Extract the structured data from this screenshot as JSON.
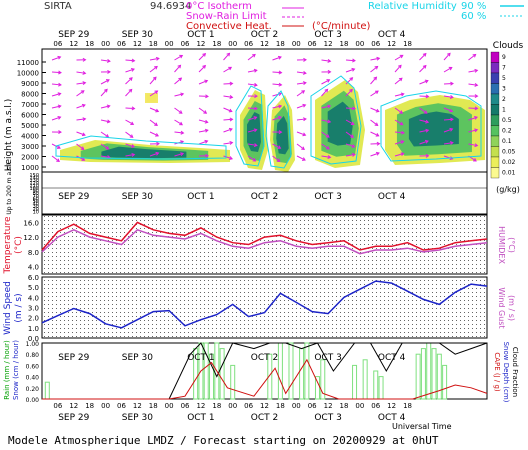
{
  "header": {
    "station": "SIRTA",
    "value": "94.6934",
    "isotherm": "0°C Isotherm",
    "snow_rain": "Snow-Rain Limit",
    "convective": "Convective Heat.",
    "convective_unit": "(°C/minute)",
    "rh_label": "Relative Humidity",
    "rh_90": "90 %",
    "rh_60": "60 %"
  },
  "dates": [
    "SEP 29",
    "SEP 30",
    "OCT  1",
    "OCT  2",
    "OCT  3",
    "OCT  4"
  ],
  "hours": [
    "06",
    "12",
    "18",
    "00",
    "06",
    "12",
    "18",
    "00",
    "06",
    "12",
    "18",
    "00",
    "06",
    "12",
    "18",
    "00",
    "06",
    "12",
    "18",
    "00",
    "06",
    "12",
    "18"
  ],
  "panels": {
    "clouds": {
      "ylabel": "Height  (m a.s.l.)",
      "yticks": [
        "11000",
        "10000",
        "9000",
        "8000",
        "7000",
        "6000",
        "5000",
        "4000",
        "3000",
        "2000",
        "1000"
      ],
      "low_ticks": [
        "150",
        "140",
        "130",
        "120",
        "110",
        "100",
        "90",
        "80",
        "70",
        "60",
        "50",
        "40",
        "30",
        "20",
        "10"
      ],
      "low_label": "Up to 200 m a.s.l.",
      "colorbar_title": "Clouds",
      "colorbar_ticks": [
        "9",
        "7",
        "5",
        "3",
        "2",
        "1",
        "0.5",
        "0.2",
        "0.1",
        "0.05",
        "0.02",
        "0.01"
      ],
      "colorbar_unit": "(g/kg)"
    },
    "temperature": {
      "ylabel": "Temperature",
      "yunit": "(°C)",
      "yticks": [
        "16.0",
        "12.0",
        "8.0",
        "4.0"
      ],
      "right_label": "HUMIDEX",
      "right_unit": "(°C)"
    },
    "wind": {
      "ylabel": "Wind Speed",
      "yunit": "(m / s)",
      "yticks": [
        "6.0",
        "5.0",
        "4.0",
        "3.0",
        "2.0",
        "1.0",
        "0.0"
      ],
      "right_label": "Wind Gust",
      "right_unit": "(m / s)"
    },
    "rain": {
      "ylabel_rain": "Rain (mm / hour)",
      "ylabel_snow": "Snow (cm / hour)",
      "yticks": [
        "1.00",
        "0.80",
        "0.60",
        "0.40",
        "0.20",
        "0.00"
      ],
      "right_cape": "CAPE (J / g)",
      "right_snow": "Snow Depth (cm)",
      "right_cloud": "Cloud Fraction",
      "xlabel": "Universal Time"
    }
  },
  "footer": "Modele Atmospherique LMDZ / Forecast starting on 20200929 at 0hUT",
  "colors": {
    "temperature": "#e0102a",
    "humidex": "#c04fc0",
    "wind": "#1c24c8",
    "rh": "#19d4e8",
    "wind_arrows": "#e020e0",
    "rain_bars": "#7fe07f",
    "cloud_frac": "#000000",
    "cape": "#d01010"
  },
  "chart_data": [
    {
      "type": "line",
      "title": "Temperature",
      "x_unit": "hours since 2020-09-29 00 UT",
      "ylim": [
        2,
        18
      ],
      "series": [
        {
          "name": "Temperature",
          "x": [
            0,
            6,
            12,
            18,
            24,
            30,
            36,
            42,
            48,
            54,
            60,
            66,
            72,
            78,
            84,
            90,
            96,
            102,
            108,
            114,
            120,
            126,
            132,
            138,
            144,
            150,
            156,
            162,
            168
          ],
          "values": [
            8.5,
            13.5,
            15.5,
            13.0,
            12.0,
            11.0,
            16.0,
            14.0,
            13.0,
            12.5,
            14.5,
            12.0,
            10.5,
            10.0,
            12.0,
            12.5,
            11.0,
            10.0,
            10.5,
            11.0,
            8.5,
            9.5,
            9.5,
            10.5,
            8.5,
            9.0,
            10.5,
            11.0,
            11.5
          ]
        },
        {
          "name": "HUMIDEX",
          "x": [
            0,
            6,
            12,
            18,
            24,
            30,
            36,
            42,
            48,
            54,
            60,
            66,
            72,
            78,
            84,
            90,
            96,
            102,
            108,
            114,
            120,
            126,
            132,
            138,
            144,
            150,
            156,
            162,
            168
          ],
          "values": [
            8.0,
            12.0,
            14.0,
            12.0,
            11.0,
            10.0,
            14.0,
            12.5,
            12.0,
            11.5,
            13.0,
            11.0,
            9.5,
            9.0,
            10.5,
            11.0,
            9.5,
            9.0,
            9.5,
            9.5,
            7.5,
            8.5,
            8.5,
            9.0,
            8.0,
            8.5,
            9.5,
            10.0,
            10.5
          ]
        }
      ]
    },
    {
      "type": "line",
      "title": "Wind Speed",
      "ylim": [
        0,
        6
      ],
      "series": [
        {
          "name": "Wind Speed",
          "x": [
            0,
            6,
            12,
            18,
            24,
            30,
            36,
            42,
            48,
            54,
            60,
            66,
            72,
            78,
            84,
            90,
            96,
            102,
            108,
            114,
            120,
            126,
            132,
            138,
            144,
            150,
            156,
            162,
            168
          ],
          "values": [
            1.5,
            2.2,
            2.9,
            2.4,
            1.4,
            1.0,
            1.8,
            2.6,
            2.7,
            1.2,
            1.8,
            2.3,
            3.3,
            2.1,
            2.5,
            4.4,
            3.5,
            2.6,
            2.4,
            4.0,
            4.8,
            5.6,
            5.4,
            4.6,
            3.8,
            3.3,
            4.5,
            5.3,
            5.1
          ]
        }
      ]
    },
    {
      "type": "bar",
      "title": "Rain",
      "ylim": [
        0,
        1
      ],
      "series": [
        {
          "name": "Rain",
          "x": [
            2,
            58,
            60,
            62,
            64,
            66,
            68,
            72,
            86,
            90,
            94,
            98,
            100,
            104,
            106,
            118,
            122,
            126,
            128,
            142,
            144,
            146,
            148,
            150,
            152
          ],
          "values": [
            0.3,
            0.9,
            1.0,
            1.0,
            0.8,
            1.0,
            0.9,
            0.6,
            0.8,
            1.0,
            1.0,
            0.9,
            1.0,
            0.4,
            0.7,
            0.6,
            0.7,
            0.5,
            0.4,
            0.8,
            0.9,
            1.0,
            0.9,
            0.8,
            0.6
          ]
        },
        {
          "name": "Cloud Fraction",
          "x": [
            48,
            56,
            60,
            66,
            72,
            80,
            86,
            92,
            98,
            104,
            110,
            118,
            124,
            130,
            136,
            142,
            150,
            156,
            162,
            168
          ],
          "values": [
            0.0,
            0.8,
            1.0,
            0.4,
            1.0,
            0.9,
            1.0,
            1.0,
            0.9,
            1.0,
            0.5,
            1.0,
            1.0,
            0.5,
            1.0,
            1.0,
            1.0,
            0.8,
            0.9,
            1.0
          ]
        },
        {
          "name": "CAPE",
          "x": [
            0,
            48,
            54,
            60,
            64,
            70,
            80,
            84,
            88,
            92,
            100,
            106,
            112,
            128,
            140,
            150,
            156,
            162,
            168
          ],
          "values": [
            0,
            0,
            0.05,
            0.5,
            0.65,
            0.2,
            0.05,
            0.3,
            0.55,
            0.1,
            0.7,
            0.1,
            0,
            0,
            0,
            0.15,
            0.25,
            0.2,
            0.1
          ]
        }
      ]
    }
  ]
}
